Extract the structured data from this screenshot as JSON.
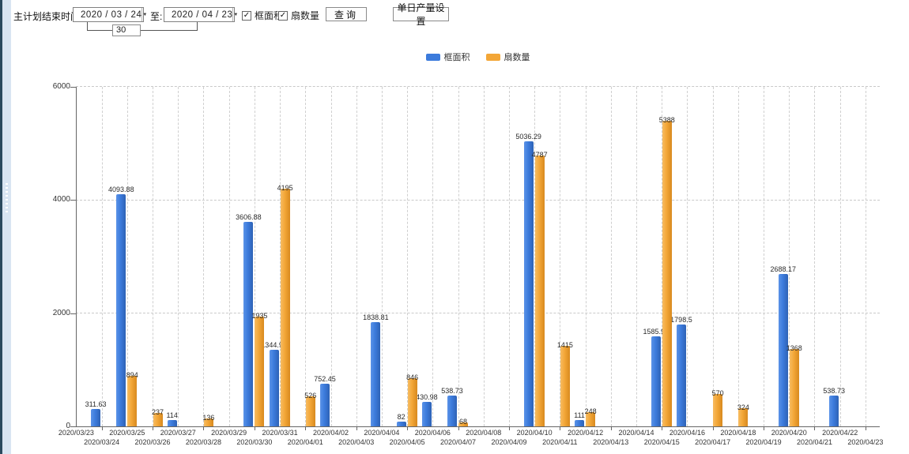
{
  "toolbar": {
    "label_main": "主计划结束时间:",
    "date_from": "2020 / 03 / 24",
    "label_to": "至:",
    "date_to": "2020 / 04 / 23",
    "days_value": "30",
    "checkboxes": [
      {
        "label": "框面积",
        "checked": true
      },
      {
        "label": "扇数量",
        "checked": true
      }
    ],
    "query_button": "查询",
    "daily_output_button": "单日产量设置",
    "check_glyph": "✓",
    "dropdown_glyph": "▼"
  },
  "chart_data": {
    "type": "bar",
    "title": "",
    "xlabel": "",
    "ylabel": "",
    "ylim": [
      0,
      6000
    ],
    "yticks": [
      0,
      2000,
      4000,
      6000
    ],
    "grid": true,
    "legend_position": "top-center",
    "value_labels": true,
    "categories": [
      "2020/03/23",
      "2020/03/24",
      "2020/03/25",
      "2020/03/26",
      "2020/03/27",
      "2020/03/28",
      "2020/03/29",
      "2020/03/30",
      "2020/03/31",
      "2020/04/01",
      "2020/04/02",
      "2020/04/03",
      "2020/04/04",
      "2020/04/05",
      "2020/04/06",
      "2020/04/07",
      "2020/04/08",
      "2020/04/09",
      "2020/04/10",
      "2020/04/11",
      "2020/04/12",
      "2020/04/13",
      "2020/04/14",
      "2020/04/15",
      "2020/04/16",
      "2020/04/17",
      "2020/04/18",
      "2020/04/19",
      "2020/04/20",
      "2020/04/21",
      "2020/04/22",
      "2020/04/23"
    ],
    "series": [
      {
        "name": "框面积",
        "color": "#3c7bdc",
        "values": [
          null,
          311.63,
          4093.88,
          null,
          114,
          null,
          null,
          3606.88,
          1344.95,
          null,
          752.45,
          null,
          1838.81,
          82,
          430.98,
          538.73,
          null,
          null,
          5036.29,
          null,
          111,
          null,
          null,
          1585.96,
          1798.5,
          null,
          null,
          null,
          2688.17,
          null,
          538.73,
          null
        ]
      },
      {
        "name": "扇数量",
        "color": "#f3a637",
        "values": [
          null,
          null,
          894,
          237,
          null,
          136,
          null,
          1935,
          4195,
          526,
          null,
          null,
          null,
          846,
          null,
          68,
          null,
          null,
          4787,
          1415,
          248,
          null,
          null,
          5388,
          null,
          570,
          324,
          null,
          1368,
          null,
          null,
          null
        ]
      }
    ]
  }
}
